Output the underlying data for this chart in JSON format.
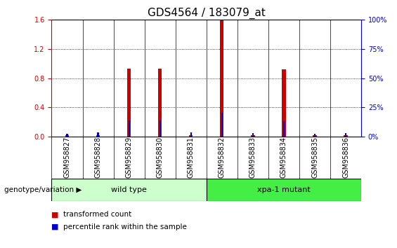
{
  "title": "GDS4564 / 183079_at",
  "samples": [
    "GSM958827",
    "GSM958828",
    "GSM958829",
    "GSM958830",
    "GSM958831",
    "GSM958832",
    "GSM958833",
    "GSM958834",
    "GSM958835",
    "GSM958836"
  ],
  "transformed_count": [
    0.02,
    0.02,
    0.93,
    0.93,
    0.02,
    1.595,
    0.02,
    0.92,
    0.02,
    0.02
  ],
  "percentile_rank": [
    2.0,
    3.5,
    13.5,
    13.5,
    3.5,
    20.0,
    3.0,
    13.0,
    2.0,
    3.0
  ],
  "ylim_left": [
    0,
    1.6
  ],
  "ylim_right": [
    0,
    100
  ],
  "yticks_left": [
    0,
    0.4,
    0.8,
    1.2,
    1.6
  ],
  "yticks_right": [
    0,
    25,
    50,
    75,
    100
  ],
  "red_color": "#cc0000",
  "blue_color": "#0000cc",
  "group1_label": "wild type",
  "group1_color": "#ccffcc",
  "group2_label": "xpa-1 mutant",
  "group2_color": "#44ee44",
  "bg_color": "#ffffff",
  "tick_bg_color": "#d8d8d8",
  "genotype_label": "genotype/variation",
  "legend_red": "transformed count",
  "legend_blue": "percentile rank within the sample",
  "title_fontsize": 11,
  "tick_fontsize": 7,
  "label_fontsize": 8,
  "red_bar_width": 0.12,
  "blue_bar_width": 0.05
}
